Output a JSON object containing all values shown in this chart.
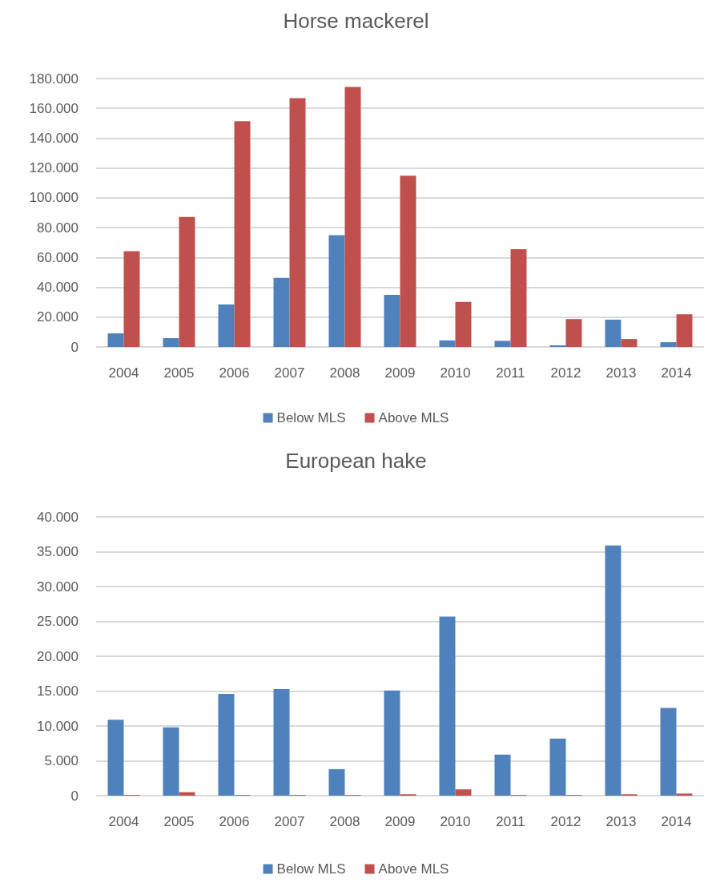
{
  "chart_data": [
    {
      "type": "bar",
      "title": "Horse mackerel",
      "categories": [
        "2004",
        "2005",
        "2006",
        "2007",
        "2008",
        "2009",
        "2010",
        "2011",
        "2012",
        "2013",
        "2014"
      ],
      "series": [
        {
          "name": "Below MLS",
          "color": "#4f81bd",
          "values": [
            9100,
            5900,
            28500,
            46400,
            74900,
            34900,
            4400,
            4100,
            1100,
            18300,
            3200
          ]
        },
        {
          "name": "Above MLS",
          "color": "#c0504d",
          "values": [
            64200,
            87200,
            151400,
            166900,
            174400,
            114900,
            30200,
            65500,
            18700,
            5300,
            21900
          ]
        }
      ],
      "ylim": [
        0,
        180000
      ],
      "yticks": [
        0,
        {
          "value": 20000,
          "label": "20.000"
        },
        {
          "value": 40000,
          "label": "40.000"
        },
        {
          "value": 60000,
          "label": "60.000"
        },
        {
          "value": 80000,
          "label": "80.000"
        },
        {
          "value": 100000,
          "label": "100.000"
        },
        {
          "value": 120000,
          "label": "120.000"
        },
        {
          "value": 140000,
          "label": "140.000"
        },
        {
          "value": 160000,
          "label": "160.000"
        },
        {
          "value": 180000,
          "label": "180.000"
        }
      ],
      "grid": "y",
      "legend": "bottom"
    },
    {
      "type": "bar",
      "title": "European hake",
      "categories": [
        "2004",
        "2005",
        "2006",
        "2007",
        "2008",
        "2009",
        "2010",
        "2011",
        "2012",
        "2013",
        "2014"
      ],
      "series": [
        {
          "name": "Below MLS",
          "color": "#4f81bd",
          "values": [
            10900,
            9800,
            14600,
            15300,
            3800,
            15100,
            25700,
            5900,
            8200,
            35900,
            12600
          ]
        },
        {
          "name": "Above MLS",
          "color": "#c0504d",
          "values": [
            100,
            500,
            100,
            100,
            100,
            200,
            900,
            100,
            100,
            200,
            300
          ]
        }
      ],
      "ylim": [
        0,
        40000
      ],
      "yticks": [
        0,
        {
          "value": 5000,
          "label": "5.000"
        },
        {
          "value": 10000,
          "label": "10.000"
        },
        {
          "value": 15000,
          "label": "15.000"
        },
        {
          "value": 20000,
          "label": "20.000"
        },
        {
          "value": 25000,
          "label": "25.000"
        },
        {
          "value": 30000,
          "label": "30.000"
        },
        {
          "value": 35000,
          "label": "35.000"
        },
        {
          "value": 40000,
          "label": "40.000"
        }
      ],
      "grid": "y",
      "legend": "bottom"
    }
  ]
}
